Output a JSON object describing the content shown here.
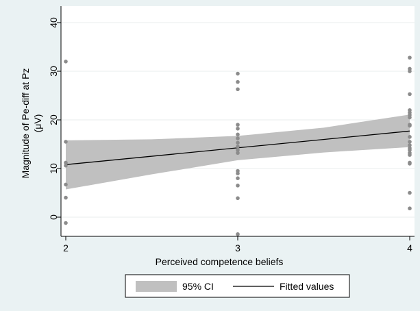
{
  "chart_data": {
    "type": "scatter",
    "title": "",
    "xlabel": "Perceived competence beliefs",
    "ylabel_line1": "Magnitude of Pe-diff at Pz",
    "ylabel_line2": "(μV)",
    "xlim": [
      2,
      4
    ],
    "ylim": [
      -4,
      40
    ],
    "x_ticks": [
      "2",
      "3",
      "4"
    ],
    "y_ticks": [
      "0",
      "10",
      "20",
      "30",
      "40"
    ],
    "grid": "horizontal",
    "legend_position": "bottom",
    "legend": {
      "ci_label": "95% CI",
      "fit_label": "Fitted values"
    },
    "colors": {
      "background": "#eaf2f3",
      "plot_area": "#ffffff",
      "points": "#8c8c8c",
      "ci_band": "#c0c0c0",
      "fit_line": "#000000"
    },
    "points": [
      {
        "x": 2,
        "y": 32
      },
      {
        "x": 2,
        "y": 15.5
      },
      {
        "x": 2,
        "y": 11.2
      },
      {
        "x": 2,
        "y": 10.6
      },
      {
        "x": 2,
        "y": 6.7
      },
      {
        "x": 2,
        "y": 4
      },
      {
        "x": 2,
        "y": -1.2
      },
      {
        "x": 3,
        "y": 29.5
      },
      {
        "x": 3,
        "y": 27.8
      },
      {
        "x": 3,
        "y": 26.3
      },
      {
        "x": 3,
        "y": 19
      },
      {
        "x": 3,
        "y": 18.2
      },
      {
        "x": 3,
        "y": 17
      },
      {
        "x": 3,
        "y": 16.2
      },
      {
        "x": 3,
        "y": 15.3
      },
      {
        "x": 3,
        "y": 14.5
      },
      {
        "x": 3,
        "y": 13.8
      },
      {
        "x": 3,
        "y": 13.2
      },
      {
        "x": 3,
        "y": 9.5
      },
      {
        "x": 3,
        "y": 9
      },
      {
        "x": 3,
        "y": 8
      },
      {
        "x": 3,
        "y": 6.5
      },
      {
        "x": 3,
        "y": 3.9
      },
      {
        "x": 3,
        "y": -3.5
      },
      {
        "x": 4,
        "y": 32.8
      },
      {
        "x": 4,
        "y": 30.5
      },
      {
        "x": 4,
        "y": 30
      },
      {
        "x": 4,
        "y": 25.3
      },
      {
        "x": 4,
        "y": 22
      },
      {
        "x": 4,
        "y": 21.5
      },
      {
        "x": 4,
        "y": 21
      },
      {
        "x": 4,
        "y": 20.5
      },
      {
        "x": 4,
        "y": 19
      },
      {
        "x": 4,
        "y": 18.8
      },
      {
        "x": 4,
        "y": 16.5
      },
      {
        "x": 4,
        "y": 15.5
      },
      {
        "x": 4,
        "y": 14.8
      },
      {
        "x": 4,
        "y": 14.2
      },
      {
        "x": 4,
        "y": 13.8
      },
      {
        "x": 4,
        "y": 13.2
      },
      {
        "x": 4,
        "y": 12.8
      },
      {
        "x": 4,
        "y": 11.2
      },
      {
        "x": 4,
        "y": 11
      },
      {
        "x": 4,
        "y": 5
      },
      {
        "x": 4,
        "y": 1.8
      }
    ],
    "fit_line": [
      {
        "x": 2,
        "y": 10.8
      },
      {
        "x": 4,
        "y": 17.7
      }
    ],
    "ci_upper": [
      {
        "x": 2,
        "y": 15.8
      },
      {
        "x": 2.5,
        "y": 16
      },
      {
        "x": 3,
        "y": 16.7
      },
      {
        "x": 3.5,
        "y": 18.4
      },
      {
        "x": 4,
        "y": 21.1
      }
    ],
    "ci_lower": [
      {
        "x": 2,
        "y": 5.7
      },
      {
        "x": 2.5,
        "y": 8.8
      },
      {
        "x": 3,
        "y": 11.7
      },
      {
        "x": 3.5,
        "y": 13.3
      },
      {
        "x": 4,
        "y": 14.4
      }
    ]
  }
}
